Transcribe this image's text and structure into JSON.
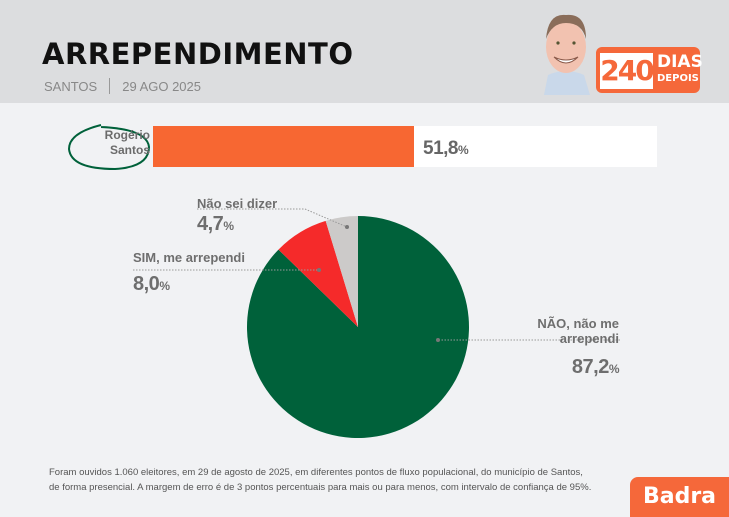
{
  "header": {
    "title": "ARREPENDIMENTO",
    "city": "SANTOS",
    "date": "29 AGO 2025",
    "badge_number": "240",
    "badge_line1": "DIAS",
    "badge_line2": "DEPOIS"
  },
  "colors": {
    "accent": "#f5683a",
    "bar": "#f76732",
    "nao": "#00613a",
    "sim": "#f52a2a",
    "nao_sei": "#cccac9"
  },
  "approval": {
    "name_line1": "Rogério",
    "name_line2": "Santos",
    "value": 51.8,
    "value_text": "51,8",
    "unit": "%"
  },
  "chart_data": {
    "type": "pie",
    "title": "ARREPENDIMENTO",
    "slices": [
      {
        "label": "NÃO, não me arrependi",
        "value": 87.2,
        "value_text": "87,2",
        "color": "#00613a"
      },
      {
        "label": "SIM, me arrependi",
        "value": 8.0,
        "value_text": "8,0",
        "color": "#f52a2a"
      },
      {
        "label": "Não sei dizer",
        "value": 4.7,
        "value_text": "4,7",
        "color": "#cccac9"
      }
    ],
    "unit": "%",
    "start": "12 o'clock, clockwise"
  },
  "footnote": {
    "line1": "Foram ouvidos 1.060 eleitores, em 29 de agosto de 2025, em diferentes pontos de fluxo populacional, do município de Santos,",
    "line2": "de forma presencial. A margem de erro é de 3 pontos percentuais para mais ou para menos, com intervalo de confiança de 95%."
  },
  "brand": "Badra"
}
